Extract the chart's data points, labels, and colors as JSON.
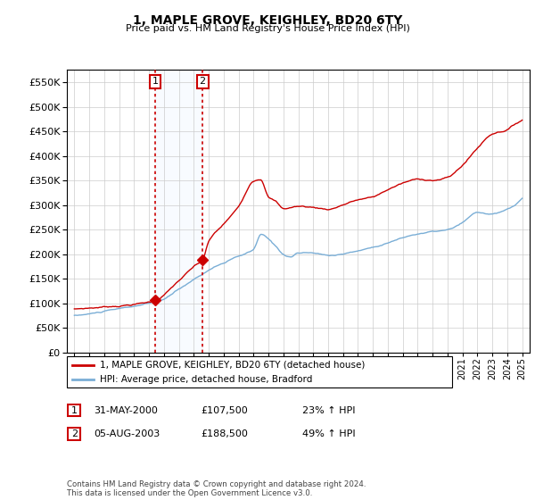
{
  "title": "1, MAPLE GROVE, KEIGHLEY, BD20 6TY",
  "subtitle": "Price paid vs. HM Land Registry's House Price Index (HPI)",
  "legend_line1": "1, MAPLE GROVE, KEIGHLEY, BD20 6TY (detached house)",
  "legend_line2": "HPI: Average price, detached house, Bradford",
  "sale1_date": "31-MAY-2000",
  "sale1_price": "£107,500",
  "sale1_hpi": "23% ↑ HPI",
  "sale1_year": 2000.42,
  "sale1_value": 107500,
  "sale2_date": "05-AUG-2003",
  "sale2_price": "£188,500",
  "sale2_hpi": "49% ↑ HPI",
  "sale2_year": 2003.59,
  "sale2_value": 188500,
  "red_color": "#cc0000",
  "blue_color": "#7aaed6",
  "shade_color": "#ddeeff",
  "footer": "Contains HM Land Registry data © Crown copyright and database right 2024.\nThis data is licensed under the Open Government Licence v3.0.",
  "ylim": [
    0,
    575000
  ],
  "xlim": [
    1994.5,
    2025.5
  ],
  "hpi_years": [
    1995.0,
    1995.08,
    1995.17,
    1995.25,
    1995.33,
    1995.42,
    1995.5,
    1995.58,
    1995.67,
    1995.75,
    1995.83,
    1995.92,
    1996.0,
    1996.08,
    1996.17,
    1996.25,
    1996.33,
    1996.42,
    1996.5,
    1996.58,
    1996.67,
    1996.75,
    1996.83,
    1996.92,
    1997.0,
    1997.08,
    1997.17,
    1997.25,
    1997.33,
    1997.42,
    1997.5,
    1997.58,
    1997.67,
    1997.75,
    1997.83,
    1997.92,
    1998.0,
    1998.08,
    1998.17,
    1998.25,
    1998.33,
    1998.42,
    1998.5,
    1998.58,
    1998.67,
    1998.75,
    1998.83,
    1998.92,
    1999.0,
    1999.08,
    1999.17,
    1999.25,
    1999.33,
    1999.42,
    1999.5,
    1999.58,
    1999.67,
    1999.75,
    1999.83,
    1999.92,
    2000.0,
    2000.08,
    2000.17,
    2000.25,
    2000.33,
    2000.42,
    2000.5,
    2000.58,
    2000.67,
    2000.75,
    2000.83,
    2000.92,
    2001.0,
    2001.08,
    2001.17,
    2001.25,
    2001.33,
    2001.42,
    2001.5,
    2001.58,
    2001.67,
    2001.75,
    2001.83,
    2001.92,
    2002.0,
    2002.08,
    2002.17,
    2002.25,
    2002.33,
    2002.42,
    2002.5,
    2002.58,
    2002.67,
    2002.75,
    2002.83,
    2002.92,
    2003.0,
    2003.08,
    2003.17,
    2003.25,
    2003.33,
    2003.42,
    2003.5,
    2003.58,
    2003.67,
    2003.75,
    2003.83,
    2003.92,
    2004.0,
    2004.08,
    2004.17,
    2004.25,
    2004.33,
    2004.42,
    2004.5,
    2004.58,
    2004.67,
    2004.75,
    2004.83,
    2004.92,
    2005.0,
    2005.08,
    2005.17,
    2005.25,
    2005.33,
    2005.42,
    2005.5,
    2005.58,
    2005.67,
    2005.75,
    2005.83,
    2005.92,
    2006.0,
    2006.08,
    2006.17,
    2006.25,
    2006.33,
    2006.42,
    2006.5,
    2006.58,
    2006.67,
    2006.75,
    2006.83,
    2006.92,
    2007.0,
    2007.08,
    2007.17,
    2007.25,
    2007.33,
    2007.42,
    2007.5,
    2007.58,
    2007.67,
    2007.75,
    2007.83,
    2007.92,
    2008.0,
    2008.08,
    2008.17,
    2008.25,
    2008.33,
    2008.42,
    2008.5,
    2008.58,
    2008.67,
    2008.75,
    2008.83,
    2008.92,
    2009.0,
    2009.08,
    2009.17,
    2009.25,
    2009.33,
    2009.42,
    2009.5,
    2009.58,
    2009.67,
    2009.75,
    2009.83,
    2009.92,
    2010.0,
    2010.08,
    2010.17,
    2010.25,
    2010.33,
    2010.42,
    2010.5,
    2010.58,
    2010.67,
    2010.75,
    2010.83,
    2010.92,
    2011.0,
    2011.08,
    2011.17,
    2011.25,
    2011.33,
    2011.42,
    2011.5,
    2011.58,
    2011.67,
    2011.75,
    2011.83,
    2011.92,
    2012.0,
    2012.08,
    2012.17,
    2012.25,
    2012.33,
    2012.42,
    2012.5,
    2012.58,
    2012.67,
    2012.75,
    2012.83,
    2012.92,
    2013.0,
    2013.08,
    2013.17,
    2013.25,
    2013.33,
    2013.42,
    2013.5,
    2013.58,
    2013.67,
    2013.75,
    2013.83,
    2013.92,
    2014.0,
    2014.08,
    2014.17,
    2014.25,
    2014.33,
    2014.42,
    2014.5,
    2014.58,
    2014.67,
    2014.75,
    2014.83,
    2014.92,
    2015.0,
    2015.08,
    2015.17,
    2015.25,
    2015.33,
    2015.42,
    2015.5,
    2015.58,
    2015.67,
    2015.75,
    2015.83,
    2015.92,
    2016.0,
    2016.08,
    2016.17,
    2016.25,
    2016.33,
    2016.42,
    2016.5,
    2016.58,
    2016.67,
    2016.75,
    2016.83,
    2016.92,
    2017.0,
    2017.08,
    2017.17,
    2017.25,
    2017.33,
    2017.42,
    2017.5,
    2017.58,
    2017.67,
    2017.75,
    2017.83,
    2017.92,
    2018.0,
    2018.08,
    2018.17,
    2018.25,
    2018.33,
    2018.42,
    2018.5,
    2018.58,
    2018.67,
    2018.75,
    2018.83,
    2018.92,
    2019.0,
    2019.08,
    2019.17,
    2019.25,
    2019.33,
    2019.42,
    2019.5,
    2019.58,
    2019.67,
    2019.75,
    2019.83,
    2019.92,
    2020.0,
    2020.08,
    2020.17,
    2020.25,
    2020.33,
    2020.42,
    2020.5,
    2020.58,
    2020.67,
    2020.75,
    2020.83,
    2020.92,
    2021.0,
    2021.08,
    2021.17,
    2021.25,
    2021.33,
    2021.42,
    2021.5,
    2021.58,
    2021.67,
    2021.75,
    2021.83,
    2021.92,
    2022.0,
    2022.08,
    2022.17,
    2022.25,
    2022.33,
    2022.42,
    2022.5,
    2022.58,
    2022.67,
    2022.75,
    2022.83,
    2022.92,
    2023.0,
    2023.08,
    2023.17,
    2023.25,
    2023.33,
    2023.42,
    2023.5,
    2023.58,
    2023.67,
    2023.75,
    2023.83,
    2023.92,
    2024.0,
    2024.08,
    2024.17,
    2024.25,
    2024.33,
    2024.42,
    2024.5,
    2024.58,
    2024.67,
    2024.75,
    2024.83,
    2024.92,
    2025.0
  ]
}
